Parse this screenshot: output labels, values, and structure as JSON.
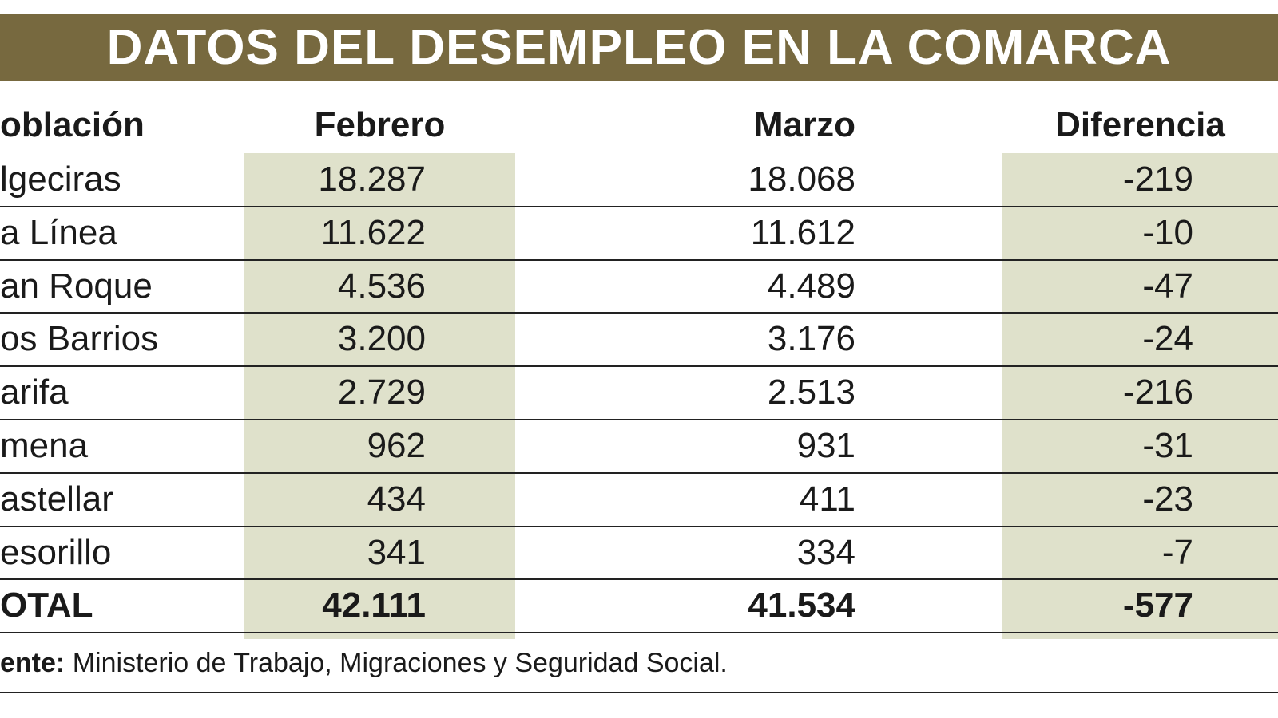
{
  "title": "DATOS DEL DESEMPLEO EN LA COMARCA",
  "table": {
    "header": [
      "oblación",
      "Febrero",
      "Marzo",
      "Diferencia"
    ],
    "rows": [
      [
        "lgeciras",
        "18.287",
        "18.068",
        "-219"
      ],
      [
        "a Línea",
        "11.622",
        "11.612",
        "-10"
      ],
      [
        "an Roque",
        "4.536",
        "4.489",
        "-47"
      ],
      [
        "os Barrios",
        "3.200",
        "3.176",
        "-24"
      ],
      [
        "arifa",
        "2.729",
        "2.513",
        "-216"
      ],
      [
        "mena",
        "962",
        "931",
        "-31"
      ],
      [
        "astellar",
        "434",
        "411",
        "-23"
      ],
      [
        "esorillo",
        "341",
        "334",
        "-7"
      ]
    ],
    "total": [
      "OTAL",
      "42.111",
      "41.534",
      "-577"
    ]
  },
  "source": {
    "label": "ente:",
    "text": "Ministerio de Trabajo, Migraciones y Seguridad Social."
  }
}
